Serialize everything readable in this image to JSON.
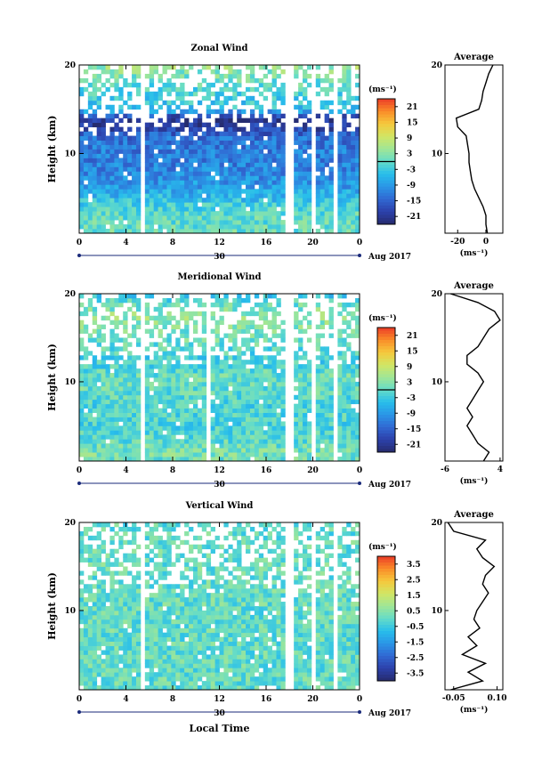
{
  "figure": {
    "xlabel": "Local Time",
    "date_label": "Aug 2017",
    "day_label": "30",
    "avg_title": "Average",
    "unit": "(ms⁻¹)",
    "cbar_unit": "(ms⁻¹)",
    "ylabel": "Height (km)"
  },
  "chart_data": [
    {
      "type": "heatmap",
      "title": "Zonal Wind",
      "xlabel": "",
      "ylabel": "Height (km)",
      "xlim": [
        0,
        24
      ],
      "ylim": [
        1,
        20
      ],
      "xticks": [
        "0",
        "4",
        "8",
        "12",
        "16",
        "20",
        "0"
      ],
      "yticks": [
        "10",
        "20"
      ],
      "colorbar": {
        "ticks": [
          "21",
          "15",
          "9",
          "3",
          "-3",
          "-9",
          "-15",
          "-21"
        ],
        "range": [
          -24,
          24
        ],
        "contour": 0
      },
      "data_gaps_hours": [
        5.3,
        5.6,
        7.1,
        7.3,
        17.7,
        18.2,
        19.7,
        20.3,
        21.6,
        22.3
      ],
      "profile_heights_km": [
        1,
        2,
        3,
        4,
        5,
        6,
        7,
        8,
        9,
        10,
        11,
        12,
        13,
        14,
        15,
        16,
        17,
        18,
        19,
        20
      ],
      "profile_values": [
        1,
        0,
        0,
        -2,
        -5,
        -8,
        -10,
        -11,
        -12,
        -12,
        -13,
        -14,
        -20,
        -21,
        -5,
        -3,
        -2,
        0,
        2,
        5
      ],
      "avg_xticks": [
        "-20",
        "0"
      ],
      "avg_xlim": [
        -29,
        12
      ]
    },
    {
      "type": "heatmap",
      "title": "Meridional Wind",
      "xlabel": "",
      "ylabel": "Height (km)",
      "xlim": [
        0,
        24
      ],
      "ylim": [
        1,
        20
      ],
      "xticks": [
        "0",
        "4",
        "8",
        "12",
        "16",
        "20",
        "0"
      ],
      "yticks": [
        "10",
        "20"
      ],
      "colorbar": {
        "ticks": [
          "21",
          "15",
          "9",
          "3",
          "-3",
          "-9",
          "-15",
          "-21"
        ],
        "range": [
          -24,
          24
        ],
        "contour": 0
      },
      "data_gaps_hours": [
        5.3,
        5.6,
        7.1,
        7.3,
        11.0,
        11.4,
        17.7,
        18.2,
        19.7,
        20.3,
        21.6,
        22.3
      ],
      "profile_heights_km": [
        1,
        2,
        3,
        4,
        5,
        6,
        7,
        8,
        9,
        10,
        11,
        12,
        13,
        14,
        15,
        16,
        17,
        18,
        19,
        20
      ],
      "profile_values": [
        1,
        2,
        0,
        -1,
        -2,
        -1,
        -2,
        -1,
        0,
        1,
        0,
        -2,
        -2,
        0,
        1,
        2,
        4,
        3,
        0,
        -5
      ],
      "avg_xticks": [
        "-6",
        "4"
      ],
      "avg_xlim": [
        -6,
        4.5
      ]
    },
    {
      "type": "heatmap",
      "title": "Vertical Wind",
      "xlabel": "Local Time",
      "ylabel": "Height (km)",
      "xlim": [
        0,
        24
      ],
      "ylim": [
        1,
        20
      ],
      "xticks": [
        "0",
        "4",
        "8",
        "12",
        "16",
        "20",
        "0"
      ],
      "yticks": [
        "10",
        "20"
      ],
      "colorbar": {
        "ticks": [
          "3.5",
          "2.5",
          "1.5",
          "0.5",
          "-0.5",
          "-1.5",
          "-2.5",
          "-3.5"
        ],
        "range": [
          -4,
          4
        ],
        "contour": null
      },
      "data_gaps_hours": [
        5.3,
        5.6,
        7.1,
        7.3,
        17.7,
        18.2,
        19.7,
        20.3,
        21.6,
        22.3
      ],
      "profile_heights_km": [
        1,
        2,
        3,
        4,
        5,
        6,
        7,
        8,
        9,
        10,
        11,
        12,
        13,
        14,
        15,
        16,
        17,
        18,
        19,
        20
      ],
      "profile_values": [
        -0.06,
        0.05,
        0.0,
        0.06,
        -0.02,
        0.03,
        0.0,
        0.04,
        0.02,
        0.03,
        0.05,
        0.07,
        0.05,
        0.06,
        0.09,
        0.05,
        0.03,
        0.06,
        -0.05,
        -0.07
      ],
      "avg_xticks": [
        "-0.05",
        "0.10"
      ],
      "avg_xlim": [
        -0.08,
        0.12
      ]
    }
  ]
}
